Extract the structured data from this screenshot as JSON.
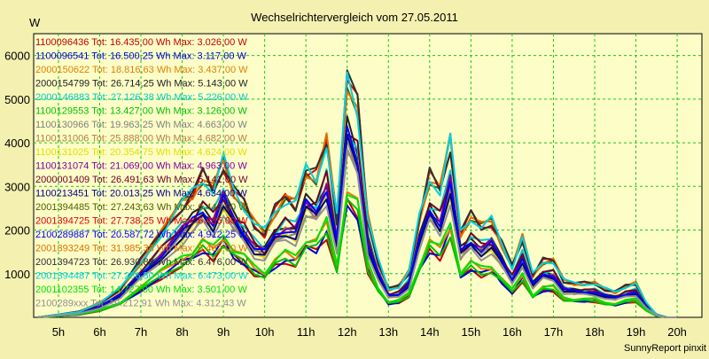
{
  "colors": {
    "background": "#f4f0b0",
    "plot_background": "#fdfdc8",
    "grid": "#19c819"
  },
  "chart_data": {
    "type": "line",
    "title": "Wechselrichtervergleich vom 27.05.2011",
    "ylabel": "W",
    "xlabel": "",
    "footer": "SunnyReport pinxit",
    "x_ticks": [
      "5h",
      "6h",
      "7h",
      "8h",
      "9h",
      "10h",
      "11h",
      "12h",
      "13h",
      "14h",
      "15h",
      "16h",
      "17h",
      "18h",
      "19h",
      "20h"
    ],
    "y_ticks": [
      "1000",
      "2000",
      "3000",
      "4000",
      "5000",
      "6000"
    ],
    "xlim": [
      4.4,
      20.6
    ],
    "ylim": [
      0,
      6500
    ],
    "grid": true,
    "legend_position": "top-left",
    "series": [
      {
        "name": "1100096436",
        "label": "1100096436 Tot: 16.435,00 Wh Max: 3.026,00 W",
        "color": "#c00000"
      },
      {
        "name": "1100096541",
        "label": "1100096541 Tot: 16.500,25 Wh Max: 3.117,00 W",
        "color": "#0000d0"
      },
      {
        "name": "2000150622",
        "label": "2000150622 Tot: 18.816,63 Wh Max: 3.437,00 W",
        "color": "#e08000"
      },
      {
        "name": "2000154799",
        "label": "2000154799 Tot: 26.714,25 Wh Max: 5.143,00 W",
        "color": "#202020"
      },
      {
        "name": "2000146883",
        "label": "2000146883 Tot: 27.126,38 Wh Max: 5.226,00 W",
        "color": "#00c8c8"
      },
      {
        "name": "1100129553",
        "label": "1100129553 Tot: 13.427,00 Wh Max: 3.126,00 W",
        "color": "#00c000"
      },
      {
        "name": "1100130966",
        "label": "1100130966 Tot: 19.963,25 Wh Max: 4.663,00 W",
        "color": "#808080"
      },
      {
        "name": "1100131006",
        "label": "1100131006 Tot: 25.888,00 Wh Max: 4.682,00 W",
        "color": "#b08040"
      },
      {
        "name": "1100131025",
        "label": "1100131025 Tot: 20.354,75 Wh Max: 4.624,00 W",
        "color": "#e0e000"
      },
      {
        "name": "1100131074",
        "label": "1100131074 Tot: 21.069,00 Wh Max: 4.963,00 W",
        "color": "#8000a0"
      },
      {
        "name": "2000001409",
        "label": "2000001409 Tot: 26.491,63 Wh Max: 5.141,00 W",
        "color": "#700020"
      },
      {
        "name": "1100213451",
        "label": "1100213451 Tot: 20.013,25 Wh Max: 4.634,00 W",
        "color": "#000080"
      },
      {
        "name": "2001394485",
        "label": "2001394485 Tot: 27.243,63 Wh Max: 6.443,00 W",
        "color": "#506000"
      },
      {
        "name": "2001394725",
        "label": "2001394725 Tot: 27.738,25 Wh Max: 6.435,00 W",
        "color": "#e00000"
      },
      {
        "name": "2100289887",
        "label": "2100289887 Tot: 20.587,72 Wh Max: 4.912,25 W",
        "color": "#0000ff"
      },
      {
        "name": "2001393249",
        "label": "2001393249 Tot: 31.985,38 Wh Max: 6.462,00 W",
        "color": "#e07000"
      },
      {
        "name": "2001394723",
        "label": "2001394723 Tot: 26.930,88 Wh Max: 6.476,00 W",
        "color": "#303030"
      },
      {
        "name": "2001394487",
        "label": "2001394487 Tot: 27.286,50 Wh Max: 6.473,00 W",
        "color": "#00d0e0"
      },
      {
        "name": "2001102355",
        "label": "2001102355 Tot: 14.727,00 Wh Max: 3.501,00 W",
        "color": "#00e000"
      },
      {
        "name": "2100289xxx",
        "label": "2100289xxx Tot: 19.212,91 Wh Max: 4.312,43 W",
        "color": "#909090"
      }
    ],
    "x": [
      4.5,
      5.0,
      5.5,
      6.0,
      6.5,
      7.0,
      7.5,
      8.0,
      8.25,
      8.5,
      8.75,
      9.0,
      9.25,
      9.5,
      9.75,
      10.0,
      10.25,
      10.5,
      10.75,
      11.0,
      11.25,
      11.5,
      11.75,
      12.0,
      12.25,
      12.5,
      12.75,
      13.0,
      13.25,
      13.5,
      13.75,
      14.0,
      14.25,
      14.5,
      14.75,
      15.0,
      15.25,
      15.5,
      15.75,
      16.0,
      16.25,
      16.5,
      16.75,
      17.0,
      17.25,
      17.5,
      17.75,
      18.0,
      18.25,
      18.5,
      18.75,
      19.0,
      19.25,
      19.5,
      19.75,
      20.0
    ],
    "shape": [
      0.0,
      0.01,
      0.02,
      0.05,
      0.1,
      0.2,
      0.3,
      0.4,
      0.44,
      0.5,
      0.45,
      0.55,
      0.45,
      0.4,
      0.33,
      0.3,
      0.38,
      0.42,
      0.4,
      0.52,
      0.5,
      0.62,
      0.35,
      0.85,
      0.75,
      0.35,
      0.2,
      0.1,
      0.11,
      0.16,
      0.35,
      0.5,
      0.45,
      0.62,
      0.3,
      0.36,
      0.32,
      0.34,
      0.26,
      0.18,
      0.28,
      0.15,
      0.2,
      0.2,
      0.13,
      0.12,
      0.12,
      0.12,
      0.1,
      0.09,
      0.11,
      0.12,
      0.05,
      0.01,
      0.0,
      0.0
    ]
  }
}
